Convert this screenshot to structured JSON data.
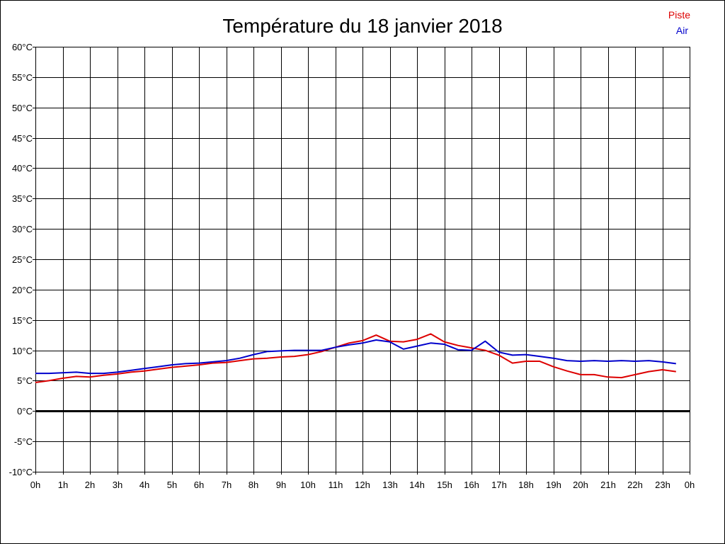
{
  "chart_data": {
    "type": "line",
    "title": "Température du 18 janvier 2018",
    "xlabel": "",
    "ylabel": "",
    "ylim": [
      -10,
      60
    ],
    "xlim": [
      0,
      24
    ],
    "grid": true,
    "legend_position": "top-right",
    "y_ticks": [
      "60°C",
      "55°C",
      "50°C",
      "45°C",
      "40°C",
      "35°C",
      "30°C",
      "25°C",
      "20°C",
      "15°C",
      "10°C",
      "5°C",
      "0°C",
      "-5°C",
      "-10°C"
    ],
    "x_ticks": [
      "0h",
      "1h",
      "2h",
      "3h",
      "4h",
      "5h",
      "6h",
      "7h",
      "8h",
      "9h",
      "10h",
      "11h",
      "12h",
      "13h",
      "14h",
      "15h",
      "16h",
      "17h",
      "18h",
      "19h",
      "20h",
      "21h",
      "22h",
      "23h",
      "0h"
    ],
    "x": [
      0,
      0.5,
      1,
      1.5,
      2,
      2.5,
      3,
      3.5,
      4,
      4.5,
      5,
      5.5,
      6,
      6.5,
      7,
      7.5,
      8,
      8.5,
      9,
      9.5,
      10,
      10.5,
      11,
      11.5,
      12,
      12.5,
      13,
      13.5,
      14,
      14.5,
      15,
      15.5,
      16,
      16.5,
      17,
      17.5,
      18,
      18.5,
      19,
      19.5,
      20,
      20.5,
      21,
      21.5,
      22,
      22.5,
      23,
      23.5
    ],
    "series": [
      {
        "name": "Piste",
        "color": "#dd0000",
        "values": [
          4.7,
          5.0,
          5.4,
          5.7,
          5.6,
          5.9,
          6.1,
          6.4,
          6.6,
          6.9,
          7.2,
          7.4,
          7.6,
          7.9,
          8.0,
          8.3,
          8.6,
          8.7,
          8.9,
          9.0,
          9.3,
          9.8,
          10.5,
          11.2,
          11.6,
          12.5,
          11.5,
          11.4,
          11.8,
          12.7,
          11.4,
          10.8,
          10.4,
          10.0,
          9.2,
          7.9,
          8.2,
          8.2,
          7.3,
          6.6,
          6.0,
          6.0,
          5.6,
          5.5,
          6.0,
          6.5,
          6.8,
          6.5
        ]
      },
      {
        "name": "Air",
        "color": "#0000cc",
        "values": [
          6.2,
          6.2,
          6.3,
          6.4,
          6.2,
          6.2,
          6.4,
          6.7,
          7.0,
          7.3,
          7.6,
          7.8,
          7.9,
          8.1,
          8.3,
          8.7,
          9.3,
          9.8,
          9.9,
          10.0,
          10.0,
          10.0,
          10.5,
          10.9,
          11.2,
          11.7,
          11.4,
          10.2,
          10.7,
          11.2,
          11.0,
          10.1,
          10.0,
          11.5,
          9.7,
          9.2,
          9.3,
          9.0,
          8.7,
          8.3,
          8.2,
          8.3,
          8.2,
          8.3,
          8.2,
          8.3,
          8.1,
          7.8
        ]
      }
    ]
  }
}
